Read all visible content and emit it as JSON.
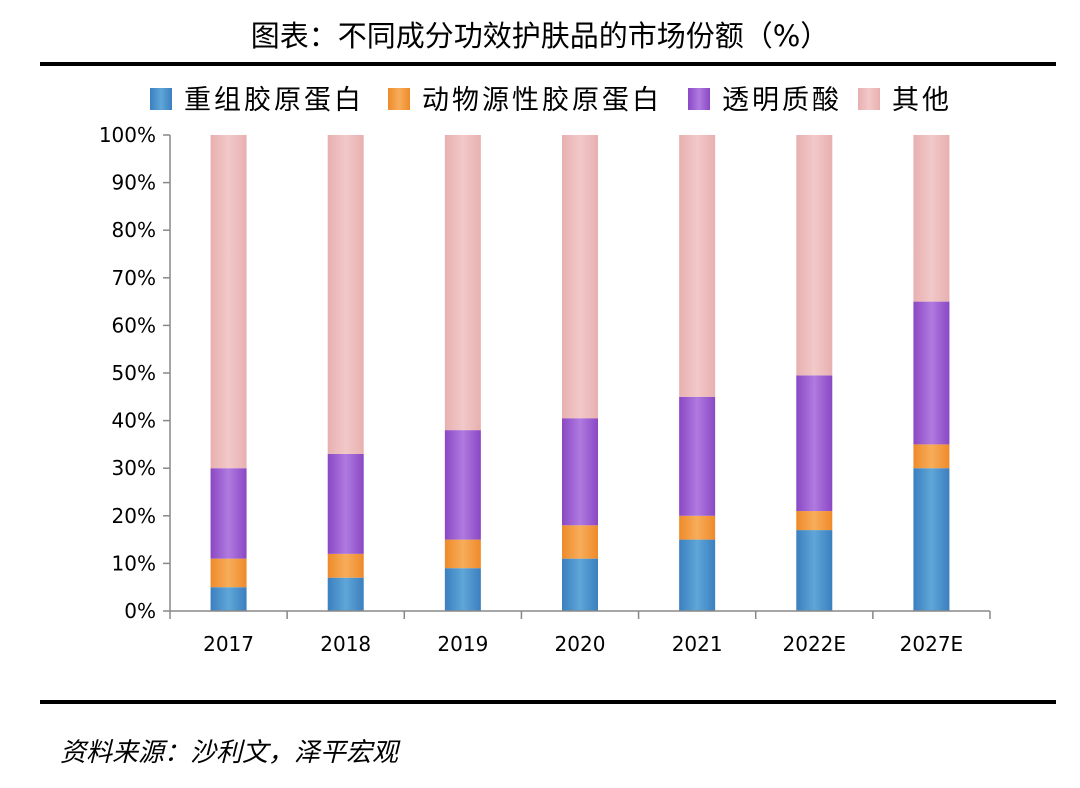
{
  "title": "图表：不同成分功效护肤品的市场份额（%）",
  "source": "资料来源：沙利文，泽平宏观",
  "chart_data": {
    "type": "bar",
    "stacked": true,
    "categories": [
      "2017",
      "2018",
      "2019",
      "2020",
      "2021",
      "2022E",
      "2027E"
    ],
    "series": [
      {
        "name": "重组胶原蛋白",
        "color": "#4a90c4",
        "values": [
          5,
          7,
          9,
          11,
          15,
          17,
          30
        ]
      },
      {
        "name": "动物源性胶原蛋白",
        "color": "#f39a3d",
        "values": [
          6,
          5,
          6,
          7,
          5,
          4,
          5
        ]
      },
      {
        "name": "透明质酸",
        "color": "#9b59d0",
        "values": [
          19,
          21,
          23,
          22.5,
          25,
          28.5,
          30
        ]
      },
      {
        "name": "其他",
        "color": "#e9b5b5",
        "values": [
          70,
          67,
          62,
          59.5,
          55,
          50.5,
          35
        ]
      }
    ],
    "y_ticks": [
      "0%",
      "10%",
      "20%",
      "30%",
      "40%",
      "50%",
      "60%",
      "70%",
      "80%",
      "90%",
      "100%"
    ],
    "ylim": [
      0,
      100
    ],
    "legend_position": "top",
    "grid": false
  }
}
